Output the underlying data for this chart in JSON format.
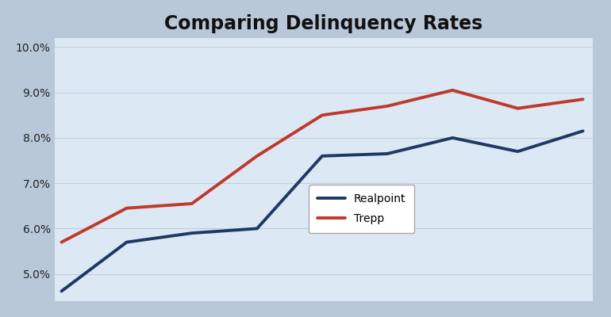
{
  "title": "Comparing Delinquency Rates",
  "title_fontsize": 17,
  "title_fontweight": "bold",
  "outer_bg_color": "#b8c8d8",
  "plot_bg_color": "#dce8f4",
  "ylim": [
    0.044,
    0.102
  ],
  "yticks": [
    0.05,
    0.06,
    0.07,
    0.08,
    0.09,
    0.1
  ],
  "ytick_labels": [
    "5.0%",
    "6.0%",
    "7.0%",
    "8.0%",
    "9.0%",
    "10.0%"
  ],
  "x_values": [
    0,
    1,
    2,
    3,
    4,
    5,
    6,
    7,
    8
  ],
  "realpoint_values": [
    0.0462,
    0.057,
    0.059,
    0.06,
    0.076,
    0.0765,
    0.08,
    0.077,
    0.0815
  ],
  "trepp_x": [
    0,
    1,
    2,
    3,
    4,
    5,
    6,
    7,
    8
  ],
  "trepp_values": [
    0.057,
    0.0645,
    0.0655,
    0.076,
    0.085,
    0.087,
    0.0905,
    0.0865,
    0.0885
  ],
  "realpoint_color": "#1f3864",
  "trepp_color": "#c0392b",
  "line_width": 2.8,
  "legend_fontsize": 10,
  "grid_color": "#c0cedd",
  "grid_linewidth": 0.8
}
